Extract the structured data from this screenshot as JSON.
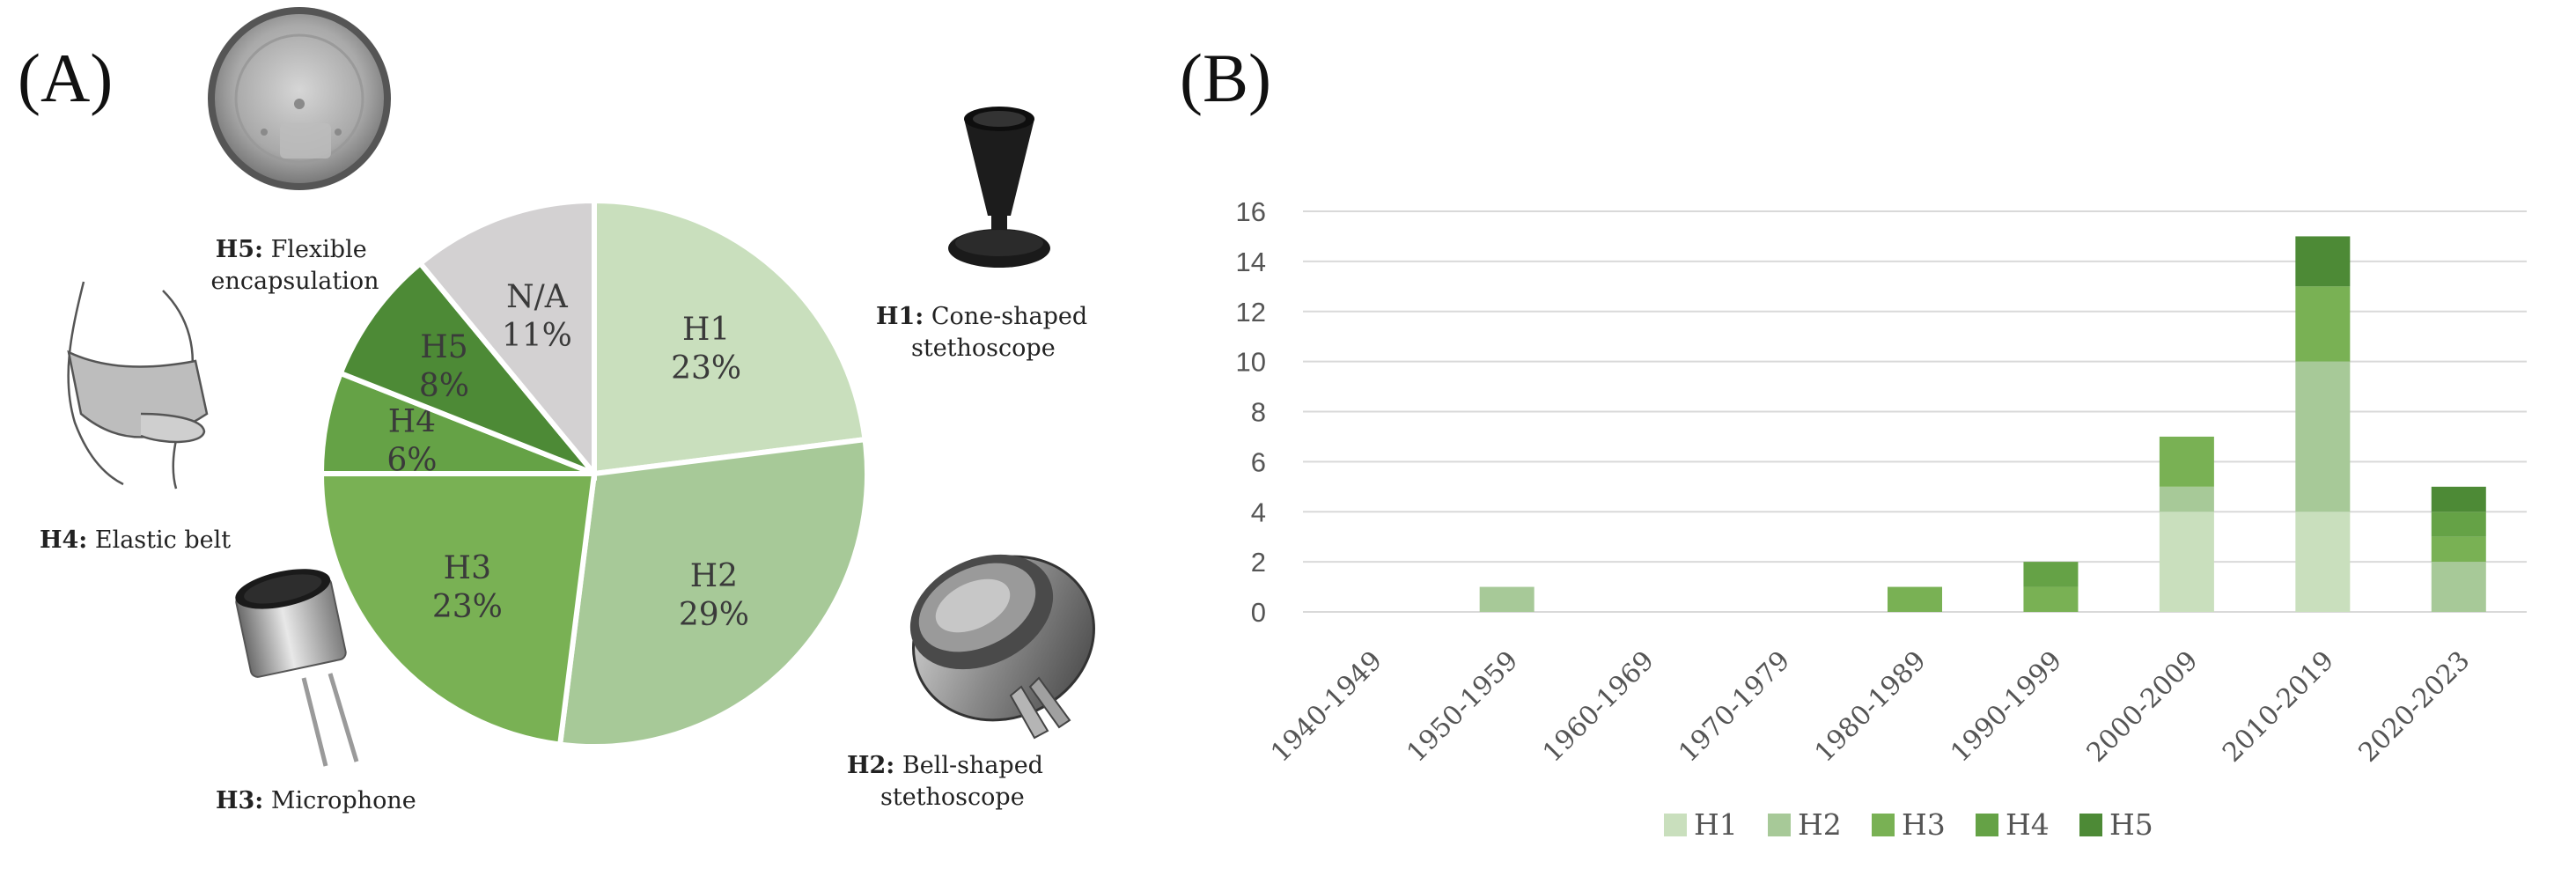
{
  "panels": {
    "a_label": "(A)",
    "b_label": "(B)"
  },
  "colors": {
    "H1": "#c9dfbd",
    "H2": "#a7c998",
    "H3": "#79b154",
    "H4": "#65a246",
    "H5": "#4d8a36",
    "N/A": "#d3d1d2"
  },
  "icons": [
    "flexible-encapsulation-photo-icon",
    "cone-stethoscope-icon",
    "bell-stethoscope-icon",
    "microphone-icon",
    "elastic-belt-icon"
  ],
  "captions": {
    "h5": {
      "bold": "H5:",
      "line1": "Flexible",
      "line2": "encapsulation"
    },
    "h1": {
      "bold": "H1:",
      "line1": "Cone-shaped",
      "line2": "stethoscope"
    },
    "h2": {
      "bold": "H2:",
      "line1": "Bell-shaped",
      "line2": "stethoscope"
    },
    "h3": {
      "bold": "H3:",
      "line1": "Microphone"
    },
    "h4": {
      "bold": "H4:",
      "line1": "Elastic belt"
    }
  },
  "chart_data": [
    {
      "type": "pie",
      "slices": [
        {
          "label": "H1",
          "value": 23,
          "value_label": "23%"
        },
        {
          "label": "H2",
          "value": 29,
          "value_label": "29%"
        },
        {
          "label": "H3",
          "value": 23,
          "value_label": "23%"
        },
        {
          "label": "H4",
          "value": 6,
          "value_label": "6%"
        },
        {
          "label": "H5",
          "value": 8,
          "value_label": "8%"
        },
        {
          "label": "N/A",
          "value": 11,
          "value_label": "11%"
        }
      ]
    },
    {
      "type": "bar",
      "stacked": true,
      "categories": [
        "1940-1949",
        "1950-1959",
        "1960-1969",
        "1970-1979",
        "1980-1989",
        "1990-1999",
        "2000-2009",
        "2010-2019",
        "2020-2023"
      ],
      "series": [
        {
          "name": "H1",
          "values": [
            0,
            0,
            0,
            0,
            0,
            0,
            4,
            4,
            0
          ]
        },
        {
          "name": "H2",
          "values": [
            0,
            1,
            0,
            0,
            0,
            0,
            1,
            6,
            2
          ]
        },
        {
          "name": "H3",
          "values": [
            0,
            0,
            0,
            0,
            1,
            1,
            2,
            3,
            1
          ]
        },
        {
          "name": "H4",
          "values": [
            0,
            0,
            0,
            0,
            0,
            1,
            0,
            0,
            1
          ]
        },
        {
          "name": "H5",
          "values": [
            0,
            0,
            0,
            0,
            0,
            0,
            0,
            2,
            1
          ]
        }
      ],
      "ylim": [
        0,
        16
      ],
      "yticks": [
        0,
        2,
        4,
        6,
        8,
        10,
        12,
        14,
        16
      ],
      "grid": true,
      "legend": "bottom",
      "xlabel": "",
      "ylabel": ""
    }
  ]
}
